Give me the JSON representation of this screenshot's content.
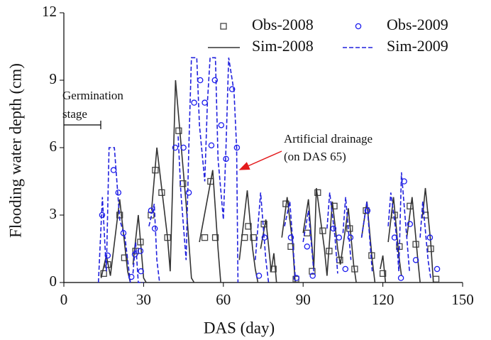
{
  "chart_data": {
    "type": "line",
    "x_label": "DAS (day)",
    "y_label": "Flooding water depth (cm)",
    "xlim": [
      0,
      150
    ],
    "xticks": [
      0,
      30,
      60,
      90,
      120,
      150
    ],
    "ylim": [
      0,
      12
    ],
    "yticks": [
      0,
      3,
      6,
      9,
      12
    ],
    "legend": "upper right",
    "annotations": [
      [
        "Germination",
        "stage"
      ],
      [
        "Artificial drainage",
        "(on DAS 65)"
      ]
    ],
    "series": [
      {
        "name": "Obs-2008",
        "kind": "scatter",
        "marker": "square",
        "color": "#444444",
        "x": [
          15,
          16.5,
          21,
          22.8,
          27,
          28.8,
          32.8,
          34.4,
          36.8,
          39,
          43.2,
          44.8,
          53,
          55.2,
          57,
          68,
          69.4,
          71.3,
          75.3,
          78.8,
          83.5,
          85.4,
          87.3,
          91.5,
          93.4,
          95.5,
          97.4,
          99.8,
          101.7,
          103.8,
          107.5,
          109.4,
          113.7,
          115.8,
          120,
          124.4,
          126.2,
          130.2,
          132.4,
          136,
          138,
          140
        ],
        "values": [
          0.4,
          0.8,
          3.0,
          1.1,
          1.4,
          1.8,
          3.0,
          5.0,
          4.0,
          2.0,
          6.75,
          4.4,
          2.0,
          4.5,
          2.0,
          2.0,
          2.5,
          2.0,
          2.6,
          0.6,
          3.5,
          1.6,
          0.15,
          2.2,
          0.5,
          4.0,
          2.3,
          1.4,
          3.4,
          1.0,
          2.4,
          0.6,
          3.2,
          1.2,
          0.4,
          3.0,
          1.6,
          3.4,
          1.7,
          3.0,
          1.5,
          0.15
        ]
      },
      {
        "name": "Sim-2008",
        "kind": "line",
        "color": "#333333",
        "x": [
          14,
          16,
          17.5,
          21,
          24,
          25,
          null,
          26,
          28,
          30,
          31,
          null,
          33,
          35,
          39,
          40,
          42,
          46,
          48,
          49,
          null,
          51,
          56,
          58,
          59,
          null,
          66,
          69,
          71,
          72,
          73,
          null,
          74,
          76,
          78,
          79,
          80,
          null,
          82,
          84,
          86,
          87,
          null,
          90,
          92,
          94,
          95,
          98,
          99,
          101,
          103,
          104,
          107,
          109,
          110,
          null,
          112,
          114,
          116,
          117,
          null,
          119,
          120,
          121,
          null,
          122,
          124,
          126,
          127,
          null,
          129,
          131,
          133,
          134,
          null,
          135,
          136,
          138,
          139
        ],
        "values": [
          0.2,
          1.2,
          0.3,
          3.7,
          0.5,
          0,
          null,
          0.8,
          3.0,
          0.2,
          0,
          null,
          3.2,
          6.0,
          2.0,
          0.5,
          9.0,
          3.5,
          0.2,
          0,
          null,
          1.8,
          5.0,
          1.5,
          0,
          null,
          1.0,
          4.1,
          1.5,
          0.6,
          0,
          null,
          1.5,
          2.8,
          0.5,
          1.3,
          0,
          null,
          2.0,
          3.8,
          1.8,
          0,
          null,
          2.2,
          3.7,
          0.6,
          4.2,
          1.5,
          0.3,
          3.6,
          1.5,
          0.8,
          3.3,
          0.8,
          0,
          null,
          2.0,
          3.6,
          1.0,
          0,
          null,
          0.6,
          1.2,
          0,
          null,
          1.8,
          3.8,
          1.2,
          0.3,
          null,
          2.0,
          3.8,
          1.2,
          0,
          null,
          3.0,
          4.2,
          1.8,
          0
        ]
      },
      {
        "name": "Obs-2009",
        "kind": "scatter",
        "marker": "circle",
        "color": "#1a1aee",
        "x": [
          14.4,
          16.5,
          18.7,
          20.5,
          22.4,
          25.4,
          26.7,
          28.8,
          29,
          32.8,
          34.2,
          41.9,
          45,
          47,
          49,
          51.3,
          53,
          55.5,
          56.8,
          59.2,
          61,
          63.3,
          65.1,
          73.4,
          75.5,
          85.4,
          87.5,
          91.5,
          93.6,
          101.4,
          103.5,
          105.9,
          107.8,
          114.2,
          124.4,
          126.8,
          128,
          130.2,
          132.4,
          137.7,
          140.4
        ],
        "values": [
          3.0,
          1.2,
          5.0,
          4.0,
          2.2,
          0.25,
          1.25,
          1.4,
          0.5,
          3.2,
          2.4,
          6.0,
          6.0,
          4.0,
          8.0,
          9.0,
          8.0,
          6.1,
          9.0,
          7.0,
          5.5,
          8.6,
          6.0,
          0.3,
          2.0,
          2.0,
          0.2,
          1.6,
          0.3,
          2.4,
          2.0,
          0.6,
          2.0,
          3.2,
          2.0,
          0.2,
          4.5,
          2.6,
          1.0,
          2.0,
          0.6
        ]
      },
      {
        "name": "Sim-2009",
        "kind": "line",
        "dashed": true,
        "color": "#2020dd",
        "x": [
          13,
          14.5,
          16,
          17,
          19,
          21,
          23,
          25,
          null,
          26,
          27,
          28,
          30,
          null,
          32,
          34,
          35,
          36,
          null,
          43,
          44,
          46,
          47,
          48,
          50,
          51,
          53,
          54,
          55,
          57,
          58,
          60,
          61,
          62,
          64,
          65,
          65.5,
          null,
          72,
          74,
          76,
          77,
          null,
          83,
          85,
          87,
          null,
          90,
          92,
          94,
          null,
          99,
          100,
          102,
          103,
          null,
          105,
          106,
          108,
          null,
          112,
          114,
          116,
          null,
          122,
          123,
          125,
          126,
          127,
          129,
          130,
          null,
          134,
          135,
          137,
          138
        ],
        "values": [
          0,
          3.8,
          0.5,
          6.0,
          6.0,
          2.8,
          2.0,
          0,
          null,
          0.4,
          1.8,
          0,
          0,
          null,
          2.5,
          3.5,
          1.0,
          0,
          null,
          6.5,
          4.0,
          1.0,
          6.0,
          10,
          10,
          7.0,
          4.5,
          8.0,
          10,
          10,
          5.5,
          2.8,
          6.0,
          10,
          8.5,
          6.0,
          0,
          null,
          1.0,
          4.0,
          1.0,
          0,
          null,
          2.5,
          3.6,
          0.3,
          null,
          1.8,
          3.2,
          0.5,
          null,
          2.4,
          4.0,
          2.0,
          0.4,
          null,
          2.2,
          3.8,
          1.0,
          null,
          2.0,
          3.6,
          0.5,
          null,
          2.5,
          4.0,
          2.2,
          0.5,
          4.9,
          2.0,
          0.5,
          null,
          2.0,
          3.6,
          1.0,
          0.2
        ]
      }
    ]
  }
}
